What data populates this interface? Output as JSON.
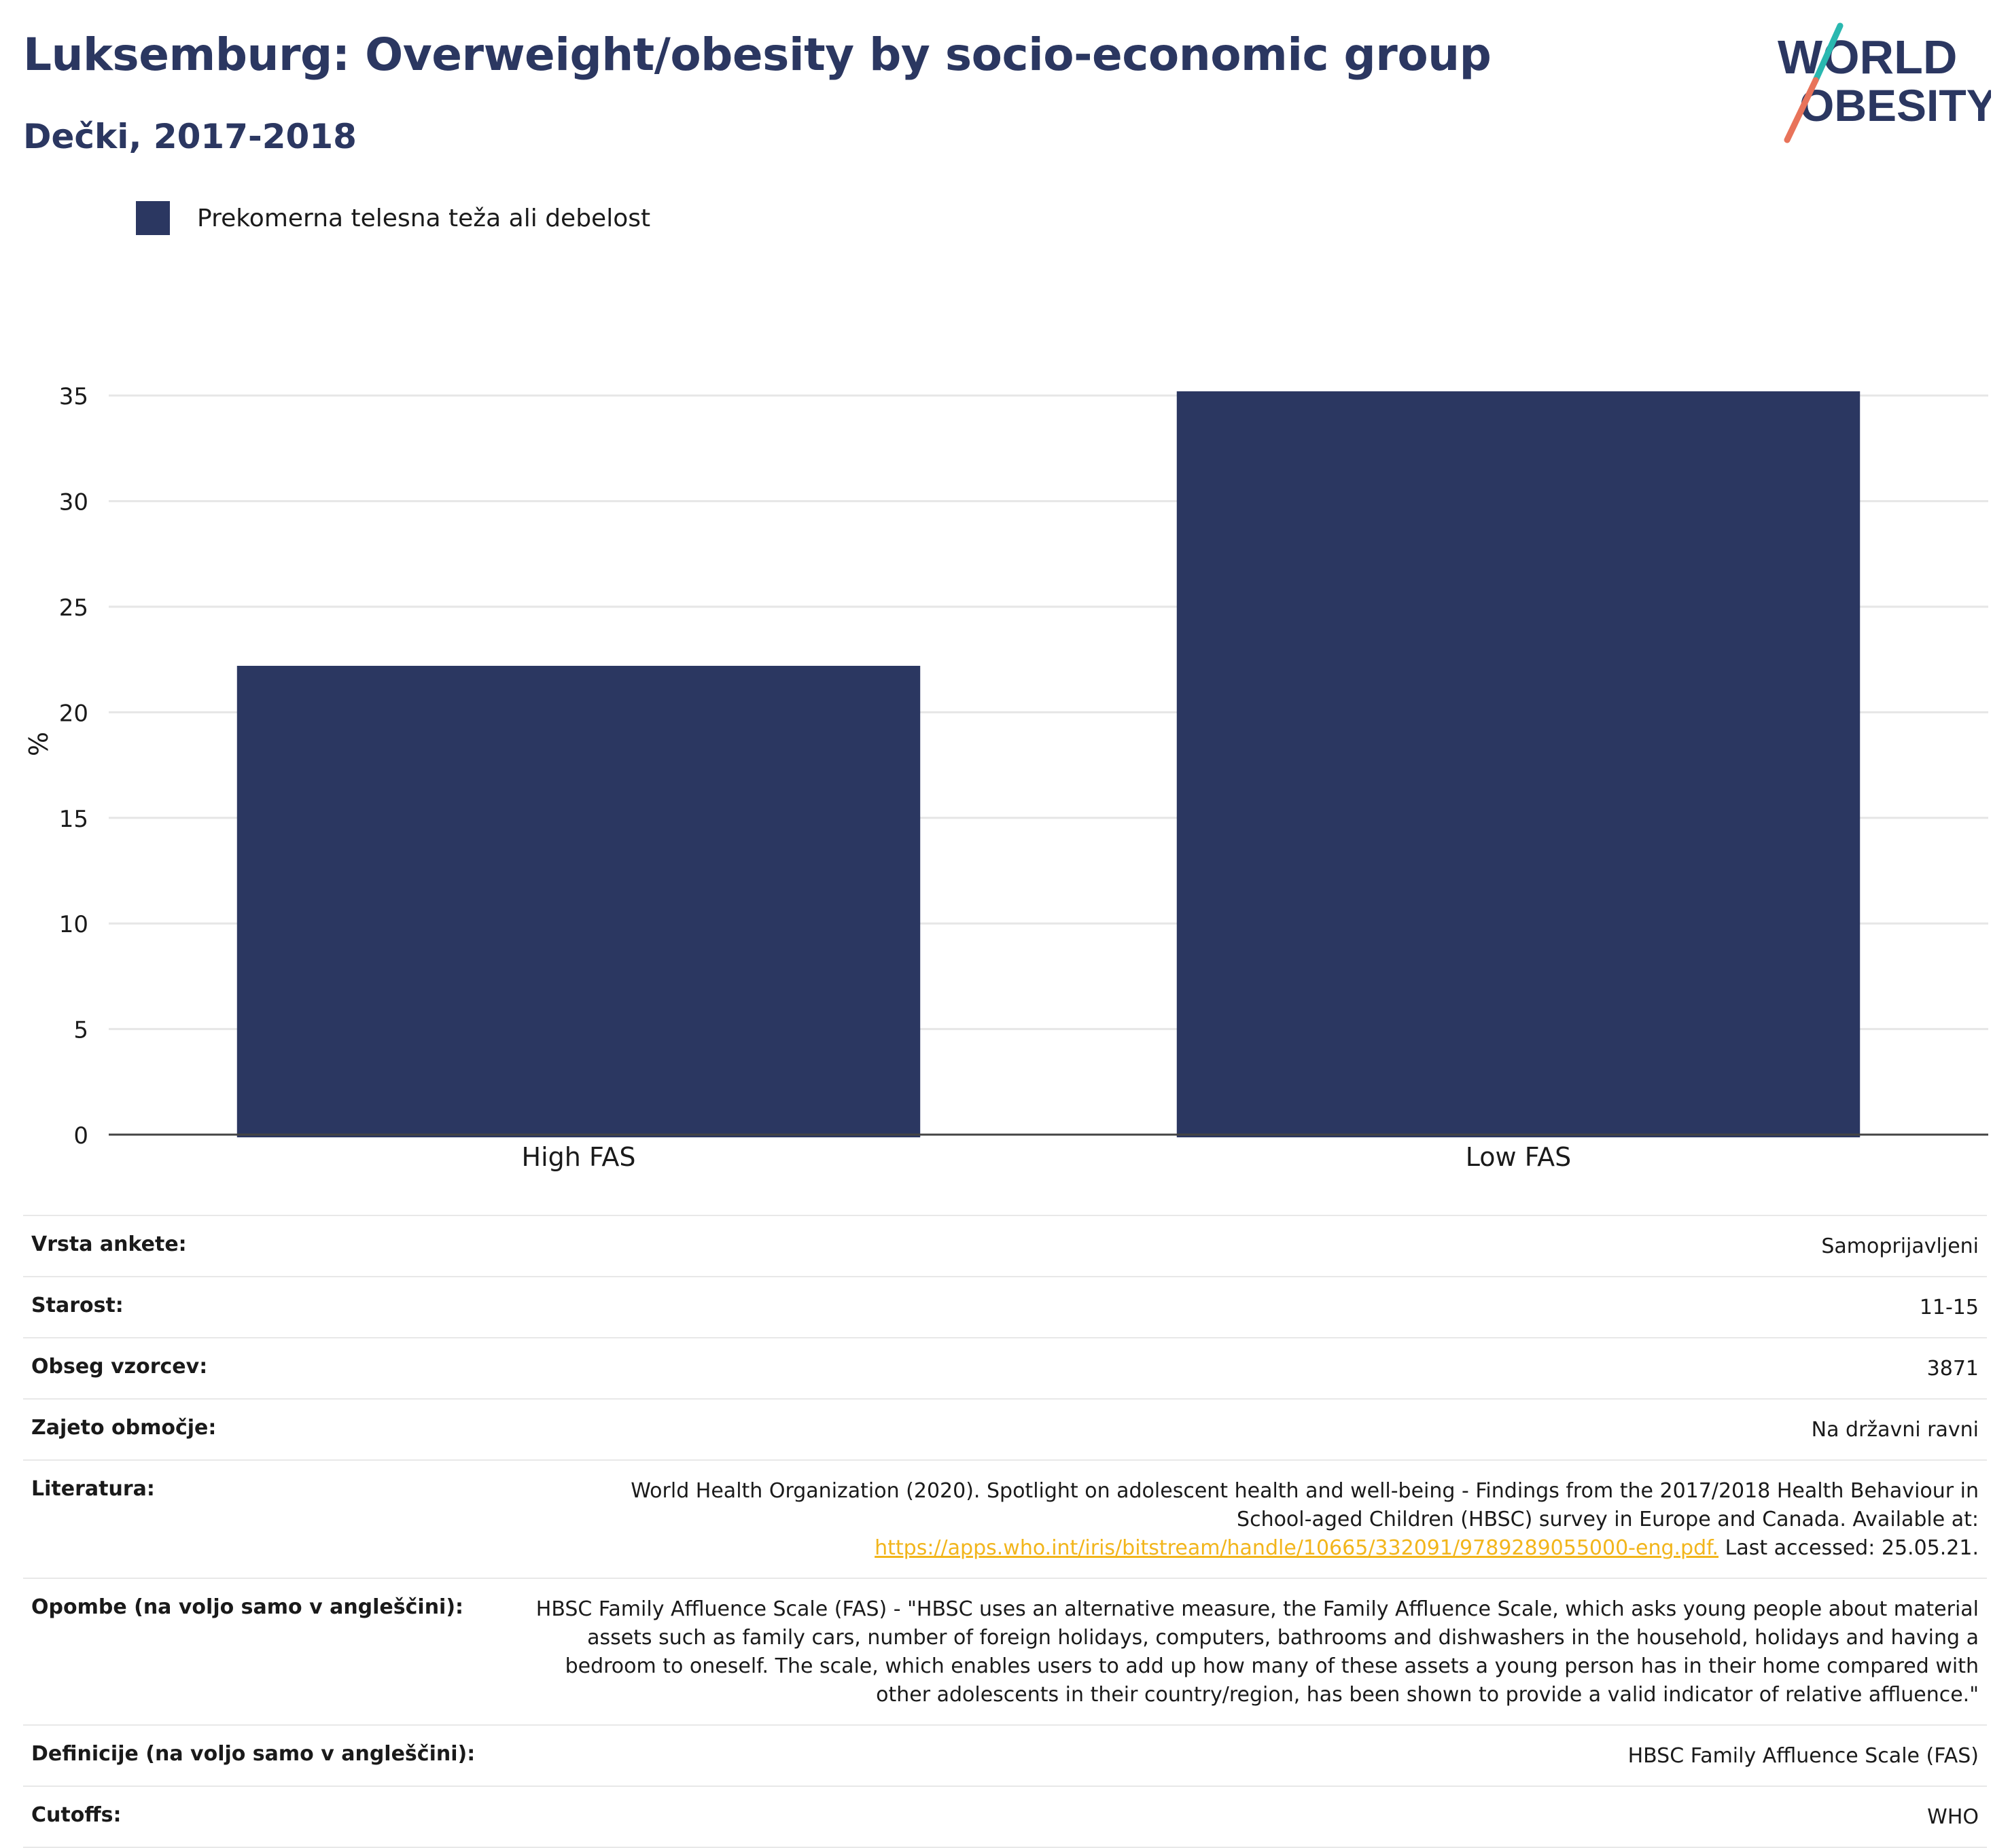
{
  "header": {
    "title": "Luksemburg: Overweight/obesity by socio-economic group",
    "subtitle": "Dečki, 2017-2018"
  },
  "logo": {
    "line1": "WORLD",
    "line2": "OBESITY",
    "colors": {
      "text": "#2b3761",
      "teal": "#2ab8b0",
      "coral": "#e8735a"
    }
  },
  "colors": {
    "bar": "#2b3761",
    "grid": "#e6e6e6",
    "axis": "#444444",
    "link": "#f2b51b"
  },
  "chart_data": {
    "type": "bar",
    "categories": [
      "High FAS",
      "Low FAS"
    ],
    "series": [
      {
        "name": "Prekomerna telesna teža ali debelost",
        "values": [
          22.2,
          35.2
        ]
      }
    ],
    "ylabel": "%",
    "ylim": [
      0,
      37
    ],
    "yticks": [
      0,
      5,
      10,
      15,
      20,
      25,
      30,
      35
    ],
    "grid": true,
    "legend": "top-left"
  },
  "meta": {
    "rows": [
      {
        "label": "Vrsta ankete:",
        "value": "Samoprijavljeni"
      },
      {
        "label": "Starost:",
        "value": "11-15"
      },
      {
        "label": "Obseg vzorcev:",
        "value": "3871"
      },
      {
        "label": "Zajeto območje:",
        "value": "Na državni ravni"
      },
      {
        "label": "Literatura:",
        "value_line1": "World Health Organization (2020). Spotlight on adolescent health and well-being - Findings from the 2017/2018 Health Behaviour in",
        "value_line2": "School-aged Children (HBSC) survey in Europe and Canada. Available at:",
        "link": "https://apps.who.int/iris/bitstream/handle/10665/332091/9789289055000-eng.pdf.",
        "value_after_link": " Last accessed: 25.05.21."
      },
      {
        "label": "Opombe (na voljo samo v angleščini):",
        "value": "HBSC Family Affluence Scale (FAS) - \"HBSC uses an alternative measure, the Family Affluence Scale, which asks young people about material assets such as family cars, number of foreign holidays, computers, bathrooms and dishwashers in the household, holidays and having a bedroom to oneself. The scale, which enables users to add up how many of these assets a young person has in their home compared with other adolescents in their country/region, has been shown to provide a valid indicator of relative affluence.\""
      },
      {
        "label": "Definicije (na voljo samo v angleščini):",
        "value": "HBSC Family Affluence Scale (FAS)"
      },
      {
        "label": "Cutoffs:",
        "value": "WHO"
      }
    ]
  }
}
